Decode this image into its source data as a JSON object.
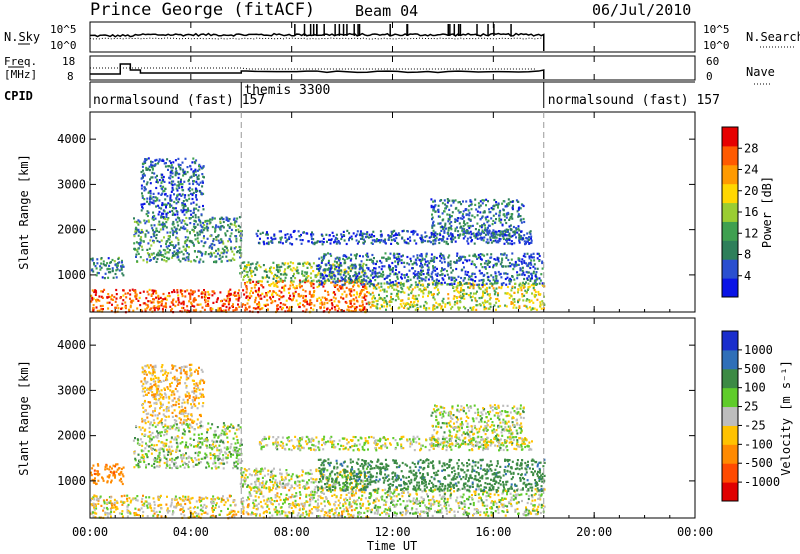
{
  "header": {
    "station": "Prince George (fitACF)",
    "beam": "Beam 04",
    "date": "06/Jul/2010"
  },
  "noise_panel": {
    "left_label": "N.Sky",
    "right_label": "N.Search",
    "left_ticks": [
      "10^5",
      "10^0"
    ],
    "right_ticks": [
      "10^5",
      "10^0"
    ]
  },
  "freq_panel": {
    "left_label_1": "Freq.",
    "left_label_2": "[MHz]",
    "left_ticks": [
      "18",
      "8"
    ],
    "right_label": "Nave",
    "right_ticks": [
      "60",
      "0"
    ]
  },
  "cpid": {
    "label": "CPID",
    "segments": [
      {
        "name": "normalsound (fast) 157",
        "start_hour": 0,
        "end_hour": 6.0
      },
      {
        "name": "themis 3300",
        "start_hour": 6.0,
        "end_hour": 18.0
      },
      {
        "name": "normalsound (fast) 157",
        "start_hour": 18.0,
        "end_hour": 24.0
      }
    ]
  },
  "time_axis": {
    "title": "Time UT",
    "ticks": [
      "00:00",
      "04:00",
      "08:00",
      "12:00",
      "16:00",
      "20:00",
      "00:00"
    ],
    "tick_hours": [
      0,
      4,
      8,
      12,
      16,
      20,
      24
    ],
    "data_end_hour": 18.0
  },
  "power_panel": {
    "ylabel": "Slant Range [km]",
    "yticks": [
      "4000",
      "3000",
      "2000",
      "1000"
    ],
    "colorbar_label": "Power [dB]",
    "colorbar_ticks": [
      "28",
      "24",
      "20",
      "16",
      "12",
      "8",
      "4"
    ],
    "colors": [
      "#0a14e6",
      "#2a4fd0",
      "#2e7f5a",
      "#3fa050",
      "#9acd32",
      "#ffd700",
      "#ff9a00",
      "#ff5a00",
      "#e60000"
    ]
  },
  "velocity_panel": {
    "ylabel": "Slant Range [km]",
    "yticks": [
      "4000",
      "3000",
      "2000",
      "1000"
    ],
    "colorbar_label": "Velocity [m s⁻¹]",
    "colorbar_ticks": [
      "1000",
      "500",
      "100",
      "25",
      "-25",
      "-100",
      "-500",
      "-1000"
    ],
    "colors": [
      "#1a2ecc",
      "#2f6fb8",
      "#3c8a44",
      "#5fcc2a",
      "#bdbdbd",
      "#ffc200",
      "#ff8a00",
      "#ff4a00",
      "#e00000"
    ]
  },
  "chart_data": {
    "type": "heatmap",
    "title": "Prince George (fitACF) Beam 04 06/Jul/2010",
    "xlabel": "Time UT",
    "ylabel": "Slant Range [km]",
    "xlim_hours": [
      0,
      24
    ],
    "ylim_km": [
      180,
      4600
    ],
    "series": [
      {
        "name": "Power [dB]",
        "range": [
          0,
          32
        ]
      },
      {
        "name": "Velocity [m s-1]",
        "range": [
          -1000,
          1000
        ]
      }
    ],
    "scatter_regions": [
      {
        "t0": 0.0,
        "t1": 6.1,
        "r0": 200,
        "r1": 700,
        "power": 27,
        "velocity": -20
      },
      {
        "t0": 6.1,
        "t1": 11.0,
        "r0": 200,
        "r1": 900,
        "power": 25,
        "velocity": -10
      },
      {
        "t0": 11.0,
        "t1": 18.0,
        "r0": 250,
        "r1": 850,
        "power": 17,
        "velocity": 15
      },
      {
        "t0": 5.9,
        "t1": 11.0,
        "r0": 850,
        "r1": 1300,
        "power": 14,
        "velocity": 10
      },
      {
        "t0": 9.0,
        "t1": 18.0,
        "r0": 800,
        "r1": 1500,
        "power": 7,
        "velocity": 150
      },
      {
        "t0": 0.0,
        "t1": 1.3,
        "r0": 950,
        "r1": 1400,
        "power": 9,
        "velocity": -150
      },
      {
        "t0": 1.7,
        "t1": 6.0,
        "r0": 1300,
        "r1": 2300,
        "power": 10,
        "velocity": 20
      },
      {
        "t0": 2.0,
        "t1": 4.5,
        "r0": 2300,
        "r1": 3600,
        "power": 7,
        "velocity": -40
      },
      {
        "t0": 13.5,
        "t1": 17.2,
        "r0": 1800,
        "r1": 2700,
        "power": 8,
        "velocity": 10
      },
      {
        "t0": 6.5,
        "t1": 17.5,
        "r0": 1700,
        "r1": 2000,
        "power": 5,
        "velocity": 5
      }
    ]
  }
}
